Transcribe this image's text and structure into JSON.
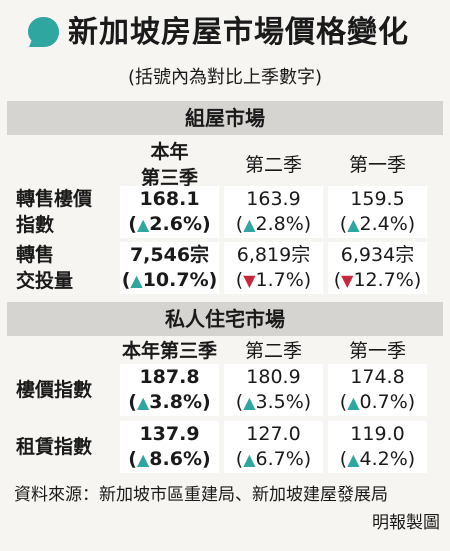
{
  "title": "新加坡房屋市場價格變化",
  "subtitle": "(括號內為對比上季數字)",
  "colors": {
    "up": "#2fa6a0",
    "down": "#c8283c",
    "bubble": "#2fa6a0",
    "section_bar": "#d6d4d1"
  },
  "hdb": {
    "section_title": "組屋市場",
    "columns": [
      "本年\n第三季",
      "第二季",
      "第一季"
    ],
    "rows": [
      {
        "label": "轉售樓價\n指數",
        "cells": [
          {
            "value": "168.1",
            "arrow": "▲",
            "dir": "up",
            "change": "2.6%"
          },
          {
            "value": "163.9",
            "arrow": "▲",
            "dir": "up",
            "change": "2.8%"
          },
          {
            "value": "159.5",
            "arrow": "▲",
            "dir": "up",
            "change": "2.4%"
          }
        ]
      },
      {
        "label": "轉售\n交投量",
        "cells": [
          {
            "value": "7,546宗",
            "arrow": "▲",
            "dir": "up",
            "change": "10.7%"
          },
          {
            "value": "6,819宗",
            "arrow": "▼",
            "dir": "down",
            "change": "1.7%"
          },
          {
            "value": "6,934宗",
            "arrow": "▼",
            "dir": "down",
            "change": "12.7%"
          }
        ]
      }
    ]
  },
  "private": {
    "section_title": "私人住宅市場",
    "columns": [
      "本年第三季",
      "第二季",
      "第一季"
    ],
    "rows": [
      {
        "label": "樓價指數",
        "cells": [
          {
            "value": "187.8",
            "arrow": "▲",
            "dir": "up",
            "change": "3.8%"
          },
          {
            "value": "180.9",
            "arrow": "▲",
            "dir": "up",
            "change": "3.5%"
          },
          {
            "value": "174.8",
            "arrow": "▲",
            "dir": "up",
            "change": "0.7%"
          }
        ]
      },
      {
        "label": "租賃指數",
        "cells": [
          {
            "value": "137.9",
            "arrow": "▲",
            "dir": "up",
            "change": "8.6%"
          },
          {
            "value": "127.0",
            "arrow": "▲",
            "dir": "up",
            "change": "6.7%"
          },
          {
            "value": "119.0",
            "arrow": "▲",
            "dir": "up",
            "change": "4.2%"
          }
        ]
      }
    ]
  },
  "source": "資料來源：新加坡市區重建局、新加坡建屋發展局",
  "credit": "明報製圖"
}
